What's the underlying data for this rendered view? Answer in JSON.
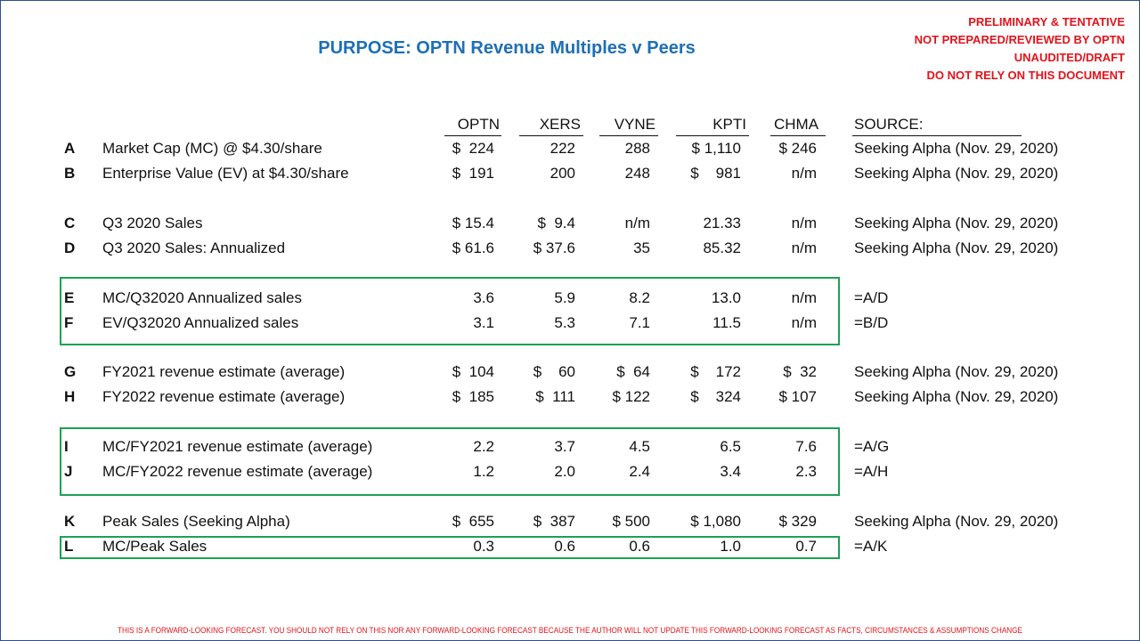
{
  "title": "PURPOSE: OPTN Revenue Multiples v Peers",
  "warnings": [
    "PRELIMINARY & TENTATIVE",
    "NOT PREPARED/REVIEWED BY OPTN",
    "UNAUDITED/DRAFT",
    "DO NOT RELY ON THIS DOCUMENT"
  ],
  "headers": [
    "OPTN",
    "XERS",
    "VYNE",
    "KPTI",
    "CHMA",
    "SOURCE:"
  ],
  "rows": [
    {
      "letter": "A",
      "label": "Market Cap (MC) @ $4.30/share",
      "values": [
        "$  224",
        "222",
        "288",
        "$ 1,110",
        "$ 246"
      ],
      "source": "Seeking Alpha (Nov. 29, 2020)"
    },
    {
      "letter": "B",
      "label": "Enterprise Value (EV) at $4.30/share",
      "values": [
        "$  191",
        "200",
        "248",
        "$    981",
        "n/m"
      ],
      "source": "Seeking Alpha (Nov. 29, 2020)"
    },
    {
      "letter": "C",
      "label": "Q3 2020 Sales",
      "values": [
        "$ 15.4",
        "$  9.4",
        "n/m",
        "21.33",
        "n/m"
      ],
      "source": "Seeking Alpha (Nov. 29, 2020)"
    },
    {
      "letter": "D",
      "label": "Q3 2020 Sales: Annualized",
      "values": [
        "$ 61.6",
        "$ 37.6",
        "35",
        "85.32",
        "n/m"
      ],
      "source": "Seeking Alpha (Nov. 29, 2020)"
    },
    {
      "letter": "E",
      "label": "MC/Q32020 Annualized sales",
      "values": [
        "3.6",
        "5.9",
        "8.2",
        "13.0",
        "n/m"
      ],
      "source": "=A/D"
    },
    {
      "letter": "F",
      "label": "EV/Q32020 Annualized sales",
      "values": [
        "3.1",
        "5.3",
        "7.1",
        "11.5",
        "n/m"
      ],
      "source": "=B/D"
    },
    {
      "letter": "G",
      "label": "FY2021 revenue estimate (average)",
      "values": [
        "$  104",
        "$    60",
        "$  64",
        "$    172",
        "$  32"
      ],
      "source": "Seeking Alpha (Nov. 29, 2020)"
    },
    {
      "letter": "H",
      "label": "FY2022 revenue estimate (average)",
      "values": [
        "$  185",
        "$  111",
        "$ 122",
        "$    324",
        "$ 107"
      ],
      "source": "Seeking Alpha (Nov. 29, 2020)"
    },
    {
      "letter": "I",
      "label": "MC/FY2021 revenue estimate (average)",
      "values": [
        "2.2",
        "3.7",
        "4.5",
        "6.5",
        "7.6"
      ],
      "source": "=A/G"
    },
    {
      "letter": "J",
      "label": "MC/FY2022 revenue estimate (average)",
      "values": [
        "1.2",
        "2.0",
        "2.4",
        "3.4",
        "2.3"
      ],
      "source": "=A/H"
    },
    {
      "letter": "K",
      "label": "Peak Sales (Seeking Alpha)",
      "values": [
        "$  655",
        "$  387",
        "$ 500",
        "$ 1,080",
        "$ 329"
      ],
      "source": "Seeking Alpha (Nov. 29, 2020)"
    },
    {
      "letter": "L",
      "label": "MC/Peak Sales",
      "values": [
        "0.3",
        "0.6",
        "0.6",
        "1.0",
        "0.7"
      ],
      "source": "=A/K"
    }
  ],
  "footer": "THIS IS A FORWARD-LOOKING FORECAST. YOU SHOULD NOT RELY ON THIS NOR ANY FORWARD-LOOKING FORECAST BECAUSE THE AUTHOR WILL NOT UPDATE THIS FORWARD-LOOKING FORECAST AS FACTS, CIRCUMSTANCES & ASSUMPTIONS CHANGE",
  "colors": {
    "title": "#1f6fb5",
    "warning": "#e3131b",
    "box": "#1ea055",
    "border": "#2f4f8f"
  }
}
